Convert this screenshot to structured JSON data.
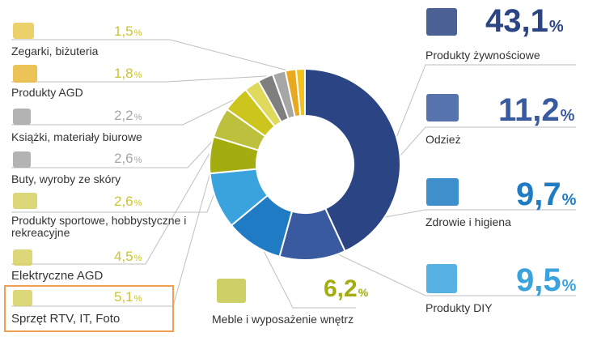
{
  "chart_data": {
    "type": "pie",
    "donut": true,
    "title": "",
    "categories": [
      "Produkty żywnościowe",
      "Odzież",
      "Zdrowie i higiena",
      "Produkty DIY",
      "Meble i wyposażenie wnętrz",
      "Sprzęt RTV, IT, Foto",
      "Elektryczne AGD",
      "Produkty sportowe, hobbystyczne i rekreacyjne",
      "Buty, wyroby ze skóry",
      "Książki, materiały biurowe",
      "Produkty AGD",
      "Zegarki, biżuteria"
    ],
    "values": [
      43.1,
      11.2,
      9.7,
      9.5,
      6.2,
      5.1,
      4.5,
      2.6,
      2.6,
      2.2,
      1.8,
      1.5
    ],
    "value_labels": [
      "43,1",
      "11,2",
      "9,7",
      "9,5",
      "6,2",
      "5,1",
      "4,5",
      "2,6",
      "2,6",
      "2,2",
      "1,8",
      "1,5"
    ],
    "unit": "%",
    "colors": [
      "#2b4584",
      "#3a5a9f",
      "#1e7bc4",
      "#3aa3dd",
      "#a3ad10",
      "#bcc03c",
      "#cbc51d",
      "#dfd95c",
      "#7f7f7f",
      "#a6a6a6",
      "#e9a91f",
      "#f3c21f"
    ],
    "highlighted": "Sprzęt RTV, IT, Foto"
  },
  "icons": [
    "groceries-icon",
    "clothing-icon",
    "health-icon",
    "diy-tools-icon",
    "furniture-icon",
    "rtv-camera-icon",
    "iron-icon",
    "bicycle-icon",
    "handbag-icon",
    "books-icon",
    "appliance-icon",
    "watch-icon"
  ]
}
